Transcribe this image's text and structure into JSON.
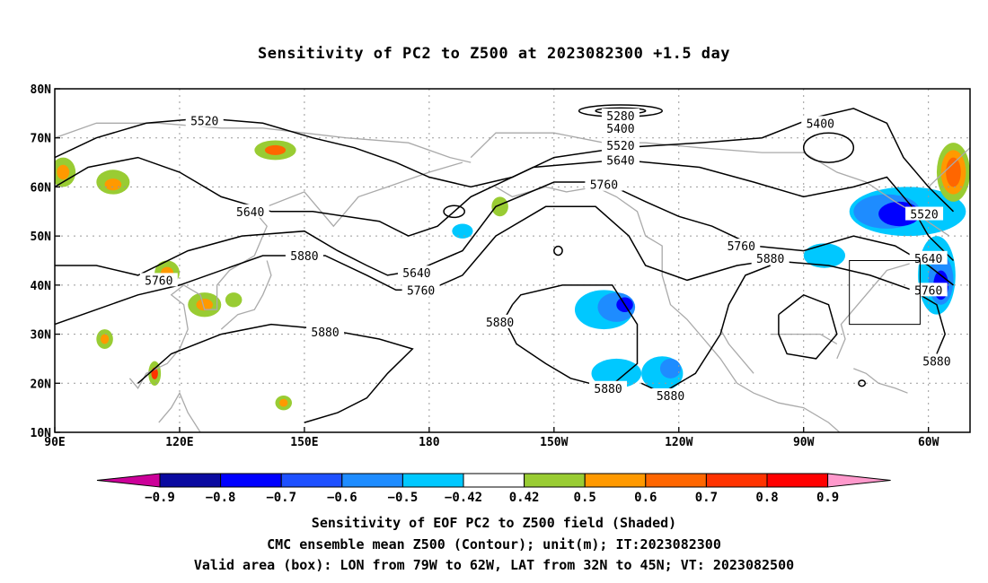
{
  "title": "Sensitivity of PC2 to Z500 at 2023082300 +1.5 day",
  "map": {
    "lon_range": [
      90,
      310
    ],
    "lat_range": [
      10,
      80
    ],
    "lat_ticks": [
      {
        "v": 80,
        "label": "80N"
      },
      {
        "v": 70,
        "label": "70N"
      },
      {
        "v": 60,
        "label": "60N"
      },
      {
        "v": 50,
        "label": "50N"
      },
      {
        "v": 40,
        "label": "40N"
      },
      {
        "v": 30,
        "label": "30N"
      },
      {
        "v": 20,
        "label": "20N"
      },
      {
        "v": 10,
        "label": "10N"
      }
    ],
    "lon_ticks": [
      {
        "v": 90,
        "label": "90E"
      },
      {
        "v": 120,
        "label": "120E"
      },
      {
        "v": 150,
        "label": "150E"
      },
      {
        "v": 180,
        "label": "180"
      },
      {
        "v": 210,
        "label": "150W"
      },
      {
        "v": 240,
        "label": "120W"
      },
      {
        "v": 270,
        "label": "90W"
      },
      {
        "v": 300,
        "label": "60W"
      }
    ],
    "valid_box": {
      "lon": [
        281,
        298
      ],
      "lat": [
        32,
        45
      ]
    },
    "contour_labels": [
      {
        "text": "5520",
        "lon": 126,
        "lat": 73.5
      },
      {
        "text": "5280",
        "lon": 226,
        "lat": 74.5
      },
      {
        "text": "5400",
        "lon": 226,
        "lat": 72
      },
      {
        "text": "5520",
        "lon": 226,
        "lat": 68.5
      },
      {
        "text": "5640",
        "lon": 226,
        "lat": 65.5
      },
      {
        "text": "5400",
        "lon": 274,
        "lat": 73
      },
      {
        "text": "5640",
        "lon": 137,
        "lat": 55
      },
      {
        "text": "5760",
        "lon": 222,
        "lat": 60.5
      },
      {
        "text": "5520",
        "lon": 299,
        "lat": 54.5
      },
      {
        "text": "5880",
        "lon": 150,
        "lat": 46
      },
      {
        "text": "5760",
        "lon": 115,
        "lat": 41
      },
      {
        "text": "5640",
        "lon": 177,
        "lat": 42.5
      },
      {
        "text": "5760",
        "lon": 178,
        "lat": 39
      },
      {
        "text": "5760",
        "lon": 255,
        "lat": 48
      },
      {
        "text": "5880",
        "lon": 262,
        "lat": 45.5
      },
      {
        "text": "5640",
        "lon": 300,
        "lat": 45.5
      },
      {
        "text": "5760",
        "lon": 300,
        "lat": 39
      },
      {
        "text": "5880",
        "lon": 155,
        "lat": 30.5
      },
      {
        "text": "5880",
        "lon": 197,
        "lat": 32.5
      },
      {
        "text": "5880",
        "lon": 223,
        "lat": 19
      },
      {
        "text": "5880",
        "lon": 238,
        "lat": 17.5
      },
      {
        "text": "5880",
        "lon": 302,
        "lat": 24.5
      }
    ]
  },
  "colorbar": {
    "labels": [
      "−0.9",
      "−0.8",
      "−0.7",
      "−0.6",
      "−0.5",
      "−0.42",
      "0.42",
      "0.5",
      "0.6",
      "0.7",
      "0.8",
      "0.9"
    ],
    "colors": [
      "#0a0aa0",
      "#0000ff",
      "#1e50ff",
      "#1e8cff",
      "#00c8ff",
      "#ffffff",
      "#99cc33",
      "#ff9900",
      "#ff6600",
      "#ff3300",
      "#ff0000"
    ],
    "low_end": "#cc0099",
    "high_end": "#ff99cc"
  },
  "captions": [
    "Sensitivity of EOF PC2 to Z500 field (Shaded)",
    "CMC ensemble mean Z500 (Contour); unit(m); IT:2023082300",
    "Valid area (box): LON from 79W to 62W, LAT from 32N to 45N; VT: 2023082500"
  ]
}
